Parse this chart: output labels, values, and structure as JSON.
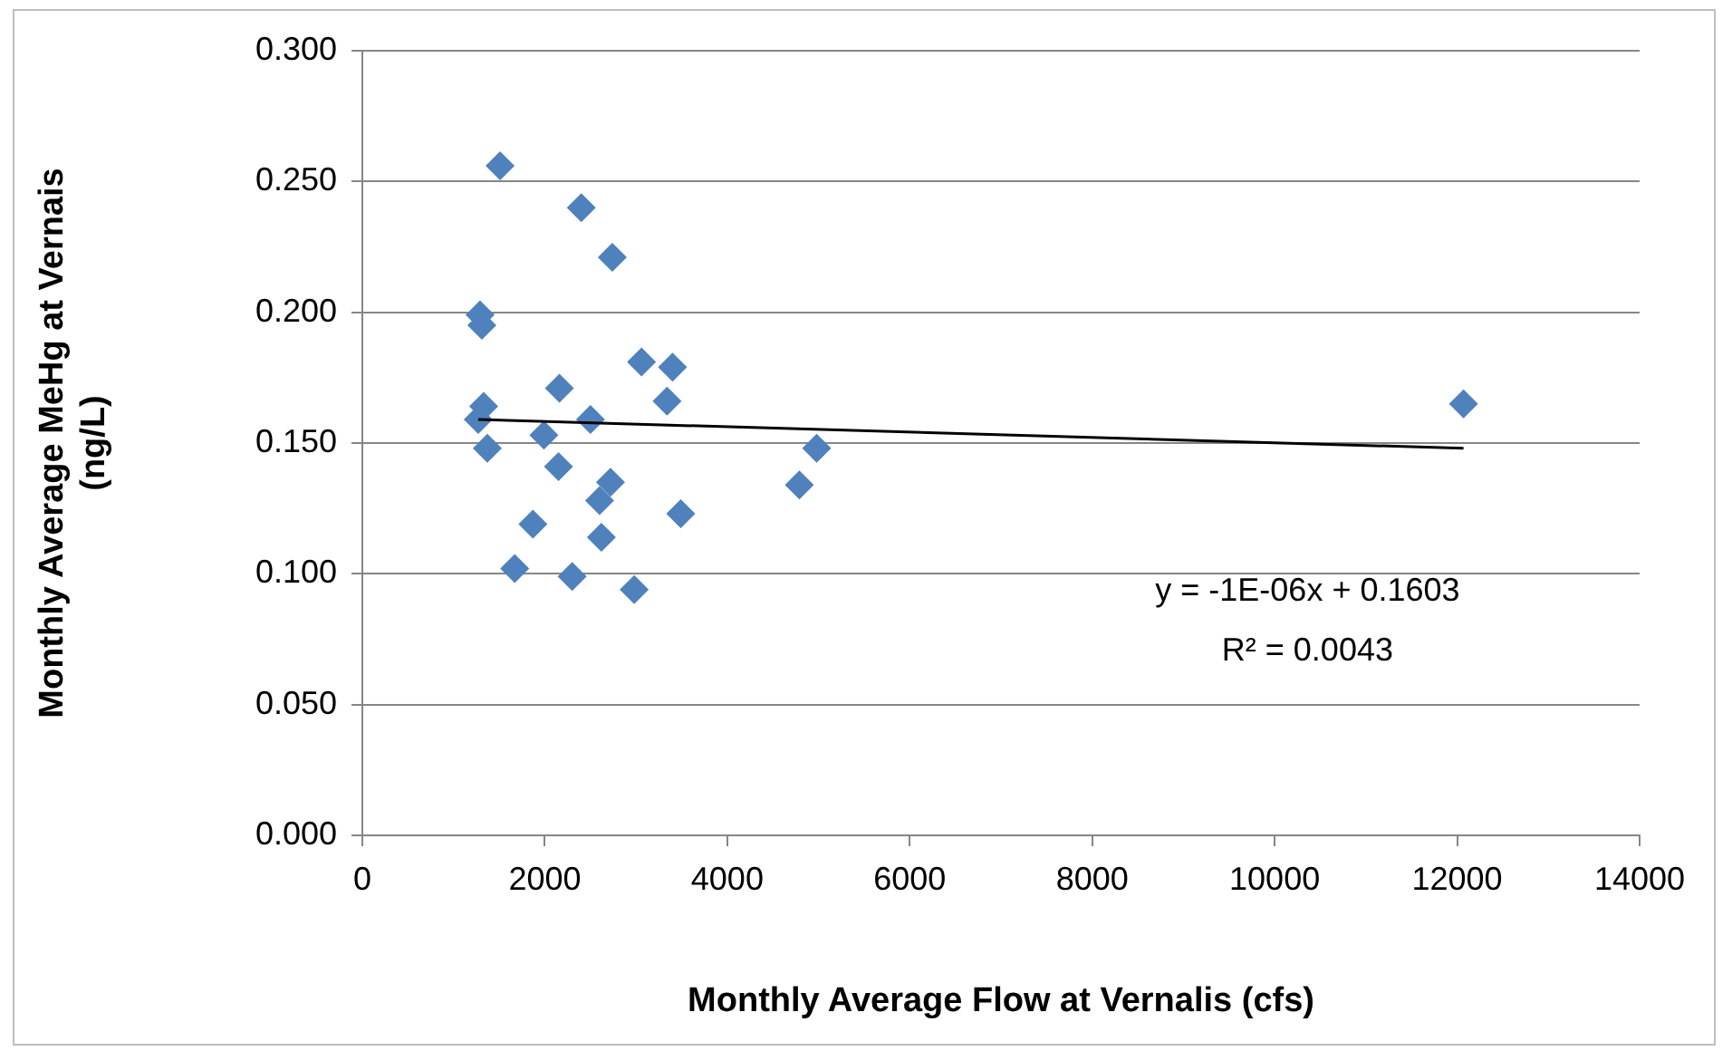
{
  "chart_data": {
    "type": "scatter",
    "xlabel": "Monthly Average Flow at Vernalis (cfs)",
    "ylabel": "Monthly Average MeHg at Vernais (ng/L)",
    "xlim": [
      0,
      14000
    ],
    "xticks": [
      0,
      2000,
      4000,
      6000,
      8000,
      10000,
      12000,
      14000
    ],
    "ylim": [
      0,
      0.3
    ],
    "yticks": [
      {
        "value": 0,
        "label": "0.000"
      },
      {
        "value": 0.05,
        "label": "0.050"
      },
      {
        "value": 0.1,
        "label": "0.100"
      },
      {
        "value": 0.15,
        "label": "0.150"
      },
      {
        "value": 0.2,
        "label": "0.200"
      },
      {
        "value": 0.25,
        "label": "0.250"
      },
      {
        "value": 0.3,
        "label": "0.300"
      }
    ],
    "grid": "y",
    "legend": false,
    "marker": "diamond",
    "series": [
      {
        "color": "#4f81bd",
        "x": [
          1510,
          2400,
          2740,
          1290,
          1310,
          1330,
          1270,
          1370,
          2160,
          3060,
          3400,
          3340,
          2500,
          1990,
          2150,
          2720,
          2600,
          2620,
          3490,
          1870,
          1670,
          2300,
          2980,
          4790,
          4980,
          12070
        ],
        "values": [
          0.256,
          0.24,
          0.221,
          0.199,
          0.195,
          0.164,
          0.159,
          0.148,
          0.171,
          0.181,
          0.179,
          0.166,
          0.159,
          0.153,
          0.141,
          0.135,
          0.128,
          0.114,
          0.123,
          0.119,
          0.102,
          0.099,
          0.094,
          0.134,
          0.148,
          0.165
        ]
      },
      {
        "type": "line",
        "color": "#000000",
        "marker": "none",
        "x": [
          1270,
          12070
        ],
        "values": [
          0.159,
          0.148
        ]
      }
    ],
    "annotations": [
      "y = -1E-06x + 0.1603",
      "R² = 0.0043"
    ]
  }
}
